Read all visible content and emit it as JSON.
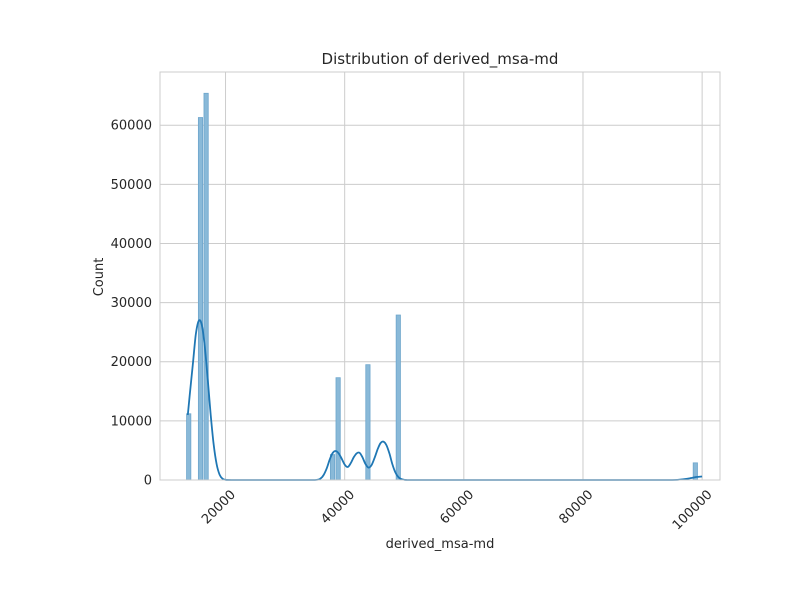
{
  "chart_data": {
    "type": "bar",
    "title": "Distribution of derived_msa-md",
    "xlabel": "derived_msa-md",
    "ylabel": "Count",
    "xlim": [
      9000,
      103000
    ],
    "ylim": [
      0,
      69000
    ],
    "grid": true,
    "x_ticks": [
      20000,
      40000,
      60000,
      80000,
      100000
    ],
    "x_tick_labels": [
      "20000",
      "40000",
      "60000",
      "80000",
      "100000"
    ],
    "y_ticks": [
      0,
      10000,
      20000,
      30000,
      40000,
      50000,
      60000
    ],
    "y_tick_labels": [
      "0",
      "10000",
      "20000",
      "30000",
      "40000",
      "50000",
      "60000"
    ],
    "bin_width": 720,
    "bars": [
      {
        "x": 13820,
        "count": 11200
      },
      {
        "x": 15800,
        "count": 61300
      },
      {
        "x": 16740,
        "count": 65400
      },
      {
        "x": 37960,
        "count": 4300
      },
      {
        "x": 38900,
        "count": 17300
      },
      {
        "x": 43900,
        "count": 19500
      },
      {
        "x": 49000,
        "count": 27900
      },
      {
        "x": 98860,
        "count": 2900
      }
    ],
    "kde": {
      "x": [
        13660,
        14000,
        14500,
        15000,
        15500,
        16000,
        16500,
        17000,
        17500,
        18000,
        18500,
        19000,
        19500,
        20000,
        21000,
        22000,
        25000,
        30000,
        35000,
        36000,
        36500,
        37000,
        37500,
        38000,
        38500,
        39000,
        39500,
        40000,
        40500,
        41000,
        41500,
        42000,
        42500,
        43000,
        43500,
        44000,
        44500,
        45000,
        45500,
        46000,
        46500,
        47000,
        47500,
        48000,
        48500,
        49000,
        49500,
        50000,
        50500,
        51000,
        51500,
        52000,
        53000,
        55000,
        60000,
        70000,
        80000,
        90000,
        95000,
        97000,
        98000,
        99000,
        100000
      ],
      "y": [
        11000,
        14500,
        19500,
        24500,
        26900,
        26300,
        22700,
        17100,
        11200,
        6100,
        2700,
        900,
        200,
        40,
        0,
        0,
        0,
        0,
        0,
        300,
        900,
        2000,
        3500,
        4600,
        4900,
        4500,
        3600,
        2600,
        2200,
        2800,
        3800,
        4500,
        4600,
        3800,
        2700,
        2100,
        2500,
        3700,
        5100,
        6200,
        6500,
        5900,
        4500,
        2700,
        1300,
        500,
        150,
        40,
        0,
        0,
        0,
        0,
        0,
        0,
        0,
        0,
        0,
        0,
        0,
        150,
        300,
        500,
        600
      ]
    },
    "colors": {
      "bar_fill": "#89b9d8",
      "bar_stroke": "#6ea6cc",
      "kde_line": "#1f77b4",
      "grid": "#cccccc",
      "frame": "#cccccc"
    }
  }
}
